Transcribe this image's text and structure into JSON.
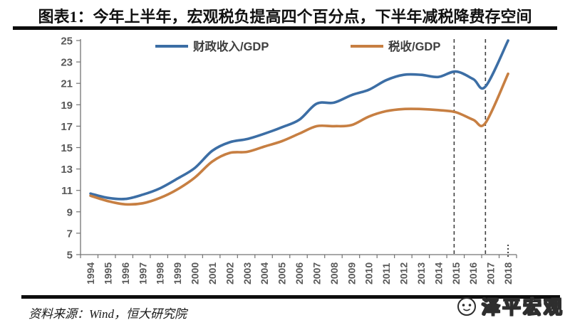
{
  "title": "图表1：今年上半年，宏观税负提高四个百分点，下半年减税降费存空间",
  "source": "资料来源：Wind，恒大研究院",
  "watermark": "泽平宏观",
  "chart_data": {
    "type": "line",
    "title": "图表1：今年上半年，宏观税负提高四个百分点，下半年减税降费存空间",
    "xlabel": "",
    "ylabel": "",
    "ylim": [
      5,
      25
    ],
    "y_tick_step": 2,
    "x_ticks": [
      "1994",
      "1995",
      "1996",
      "1997",
      "1998",
      "1999",
      "2000",
      "2001",
      "2002",
      "2003",
      "2004",
      "2005",
      "2006",
      "2007",
      "2008",
      "2009",
      "2010",
      "2011",
      "2012",
      "2013",
      "2014",
      "2015",
      "2016",
      "2017",
      "2018"
    ],
    "x_range": [
      1994,
      2018
    ],
    "grid": false,
    "legend_position": "top",
    "axis_color": "#737373",
    "tick_label_color": "#595959",
    "vline_color": "#404040",
    "vlines_x": [
      2014.9,
      2016.7
    ],
    "end_dots_x": 2018,
    "series": [
      {
        "name": "财政收入/GDP",
        "color": "#3C6EA5",
        "points": [
          [
            1994,
            10.7
          ],
          [
            1995,
            10.3
          ],
          [
            1996,
            10.2
          ],
          [
            1997,
            10.6
          ],
          [
            1998,
            11.2
          ],
          [
            1999,
            12.1
          ],
          [
            2000,
            13.1
          ],
          [
            2001,
            14.7
          ],
          [
            2002,
            15.5
          ],
          [
            2003,
            15.8
          ],
          [
            2004,
            16.3
          ],
          [
            2005,
            16.9
          ],
          [
            2006,
            17.6
          ],
          [
            2007,
            19.1
          ],
          [
            2008,
            19.2
          ],
          [
            2009,
            19.9
          ],
          [
            2010,
            20.4
          ],
          [
            2011,
            21.3
          ],
          [
            2012,
            21.8
          ],
          [
            2013,
            21.8
          ],
          [
            2014,
            21.6
          ],
          [
            2015,
            22.1
          ],
          [
            2016,
            21.4
          ],
          [
            2016.7,
            20.7
          ],
          [
            2018,
            25.0
          ]
        ]
      },
      {
        "name": "税收/GDP",
        "color": "#C77F42",
        "points": [
          [
            1994,
            10.5
          ],
          [
            1995,
            10.0
          ],
          [
            1996,
            9.7
          ],
          [
            1997,
            9.8
          ],
          [
            1998,
            10.3
          ],
          [
            1999,
            11.1
          ],
          [
            2000,
            12.2
          ],
          [
            2001,
            13.7
          ],
          [
            2002,
            14.5
          ],
          [
            2003,
            14.6
          ],
          [
            2004,
            15.1
          ],
          [
            2005,
            15.6
          ],
          [
            2006,
            16.3
          ],
          [
            2007,
            17.0
          ],
          [
            2008,
            17.0
          ],
          [
            2009,
            17.1
          ],
          [
            2010,
            17.9
          ],
          [
            2011,
            18.4
          ],
          [
            2012,
            18.6
          ],
          [
            2013,
            18.6
          ],
          [
            2014,
            18.5
          ],
          [
            2015,
            18.3
          ],
          [
            2016,
            17.6
          ],
          [
            2016.7,
            17.3
          ],
          [
            2018,
            21.9
          ]
        ]
      }
    ]
  }
}
